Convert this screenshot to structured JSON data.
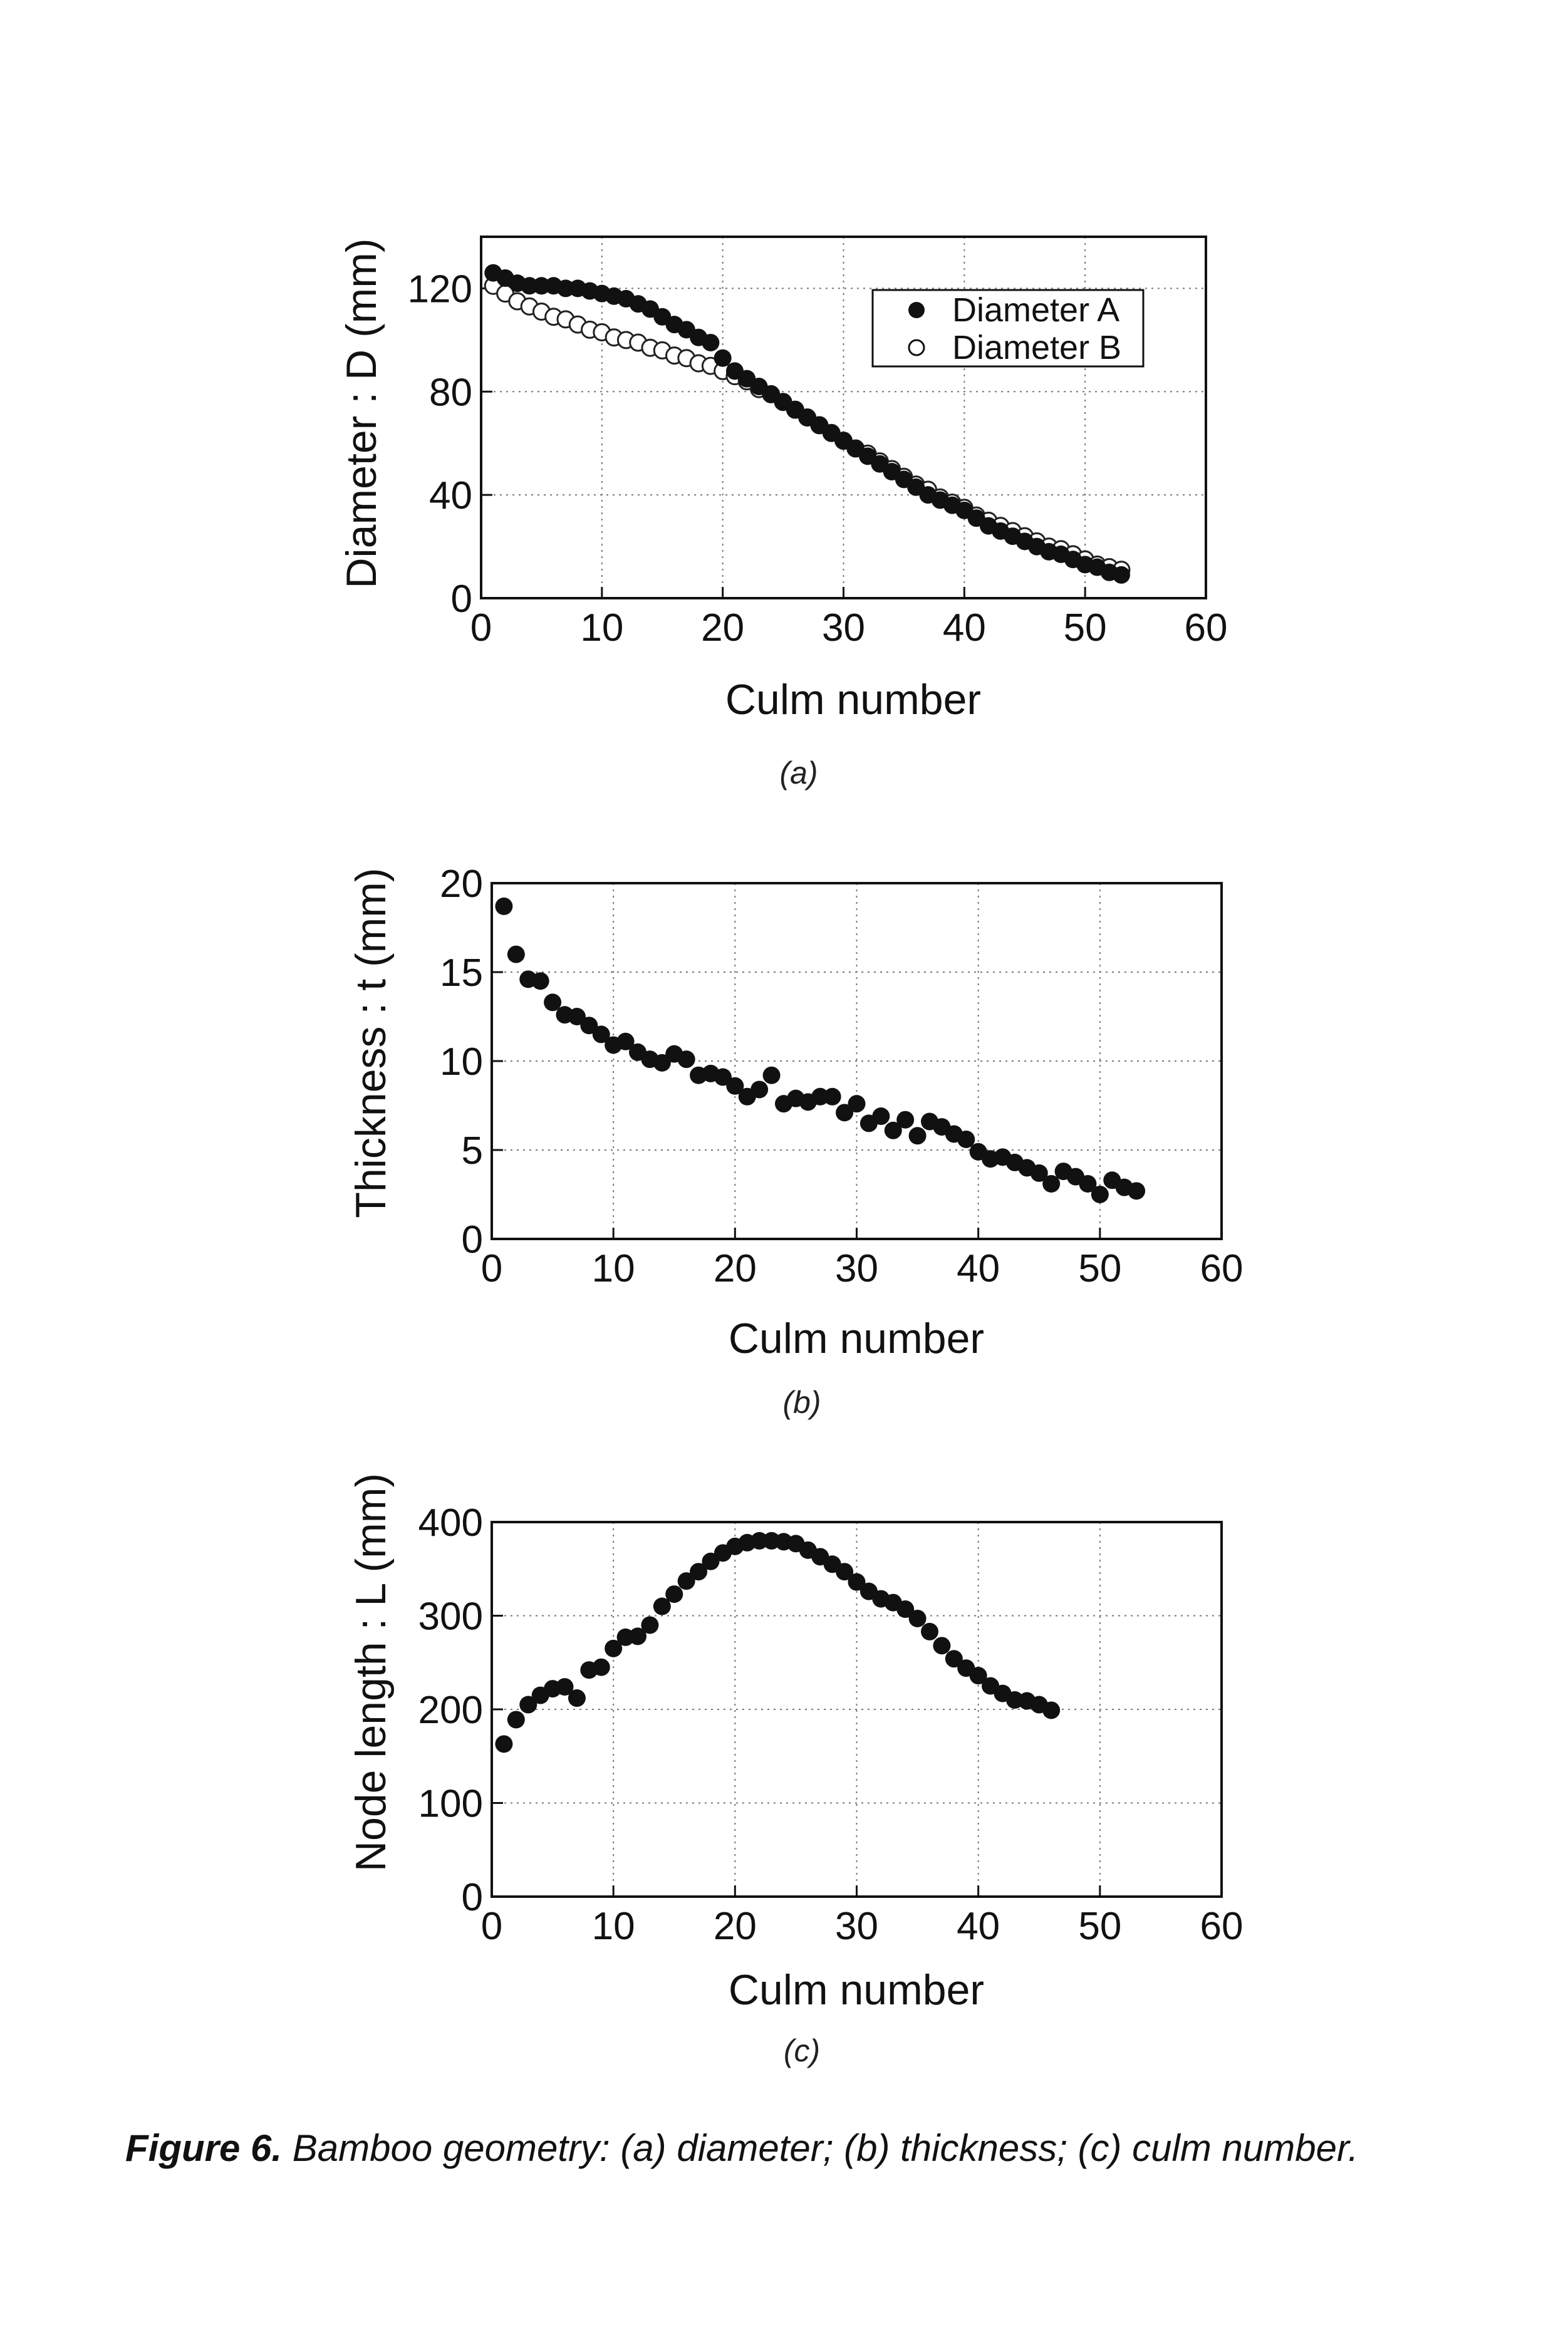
{
  "figure": {
    "caption_label": "Figure 6.",
    "caption_text": "Bamboo geometry: (a) diameter; (b) thickness; (c) culm number."
  },
  "chart_data": [
    {
      "id": "a",
      "panel_label": "(a)",
      "type": "scatter",
      "xlabel": "Culm number",
      "ylabel": "Diameter : D (mm)",
      "xlim": [
        0,
        60
      ],
      "ylim": [
        0,
        140
      ],
      "xticks": [
        0,
        10,
        20,
        30,
        40,
        50,
        60
      ],
      "yticks": [
        0,
        40,
        80,
        120
      ],
      "grid": true,
      "legend": "top-right",
      "series": [
        {
          "name": "Diameter A",
          "marker": "filled-circle",
          "x": [
            1,
            2,
            3,
            4,
            5,
            6,
            7,
            8,
            9,
            10,
            11,
            12,
            13,
            14,
            15,
            16,
            17,
            18,
            19,
            20,
            21,
            22,
            23,
            24,
            25,
            26,
            27,
            28,
            29,
            30,
            31,
            32,
            33,
            34,
            35,
            36,
            37,
            38,
            39,
            40,
            41,
            42,
            43,
            44,
            45,
            46,
            47,
            48,
            49,
            50,
            51,
            52,
            53
          ],
          "y": [
            126,
            124,
            122,
            121,
            121,
            121,
            120,
            120,
            119,
            118,
            117,
            116,
            114,
            112,
            109,
            106,
            104,
            101,
            99,
            93,
            88,
            85,
            82,
            79,
            76,
            73,
            70,
            67,
            64,
            61,
            58,
            55,
            52,
            49,
            46,
            43,
            40,
            38,
            36,
            34,
            31,
            28,
            26,
            24,
            22,
            20,
            18,
            17,
            15,
            13,
            12,
            10,
            9
          ]
        },
        {
          "name": "Diameter B",
          "marker": "open-circle",
          "x": [
            1,
            2,
            3,
            4,
            5,
            6,
            7,
            8,
            9,
            10,
            11,
            12,
            13,
            14,
            15,
            16,
            17,
            18,
            19,
            20,
            21,
            22,
            23,
            24,
            25,
            26,
            27,
            28,
            29,
            30,
            31,
            32,
            33,
            34,
            35,
            36,
            37,
            38,
            39,
            40,
            41,
            42,
            43,
            44,
            45,
            46,
            47,
            48,
            49,
            50,
            51,
            52,
            53
          ],
          "y": [
            121,
            118,
            115,
            113,
            111,
            109,
            108,
            106,
            104,
            103,
            101,
            100,
            99,
            97,
            96,
            94,
            93,
            91,
            90,
            88,
            86,
            84,
            81,
            79,
            76,
            73,
            70,
            67,
            64,
            61,
            58,
            56,
            53,
            50,
            47,
            44,
            42,
            39,
            37,
            35,
            32,
            30,
            28,
            26,
            24,
            22,
            20,
            19,
            17,
            15,
            13,
            12,
            11
          ]
        }
      ]
    },
    {
      "id": "b",
      "panel_label": "(b)",
      "type": "scatter",
      "xlabel": "Culm number",
      "ylabel": "Thickness : t (mm)",
      "xlim": [
        0,
        60
      ],
      "ylim": [
        0,
        20
      ],
      "xticks": [
        0,
        10,
        20,
        30,
        40,
        50,
        60
      ],
      "yticks": [
        0,
        5,
        10,
        15,
        20
      ],
      "grid": true,
      "series": [
        {
          "marker": "filled-circle",
          "x": [
            1,
            2,
            3,
            4,
            5,
            6,
            7,
            8,
            9,
            10,
            11,
            12,
            13,
            14,
            15,
            16,
            17,
            18,
            19,
            20,
            21,
            22,
            23,
            24,
            25,
            26,
            27,
            28,
            29,
            30,
            31,
            32,
            33,
            34,
            35,
            36,
            37,
            38,
            39,
            40,
            41,
            42,
            43,
            44,
            45,
            46,
            47,
            48,
            49,
            50,
            51,
            52,
            53
          ],
          "y": [
            18.7,
            16.0,
            14.6,
            14.5,
            13.3,
            12.6,
            12.5,
            12.0,
            11.5,
            10.9,
            11.1,
            10.5,
            10.1,
            9.9,
            10.4,
            10.1,
            9.2,
            9.3,
            9.1,
            8.6,
            8.0,
            8.4,
            9.2,
            7.6,
            7.9,
            7.7,
            8.0,
            8.0,
            7.1,
            7.6,
            6.5,
            6.9,
            6.1,
            6.7,
            5.8,
            6.6,
            6.3,
            5.9,
            5.6,
            4.9,
            4.5,
            4.6,
            4.3,
            4.0,
            3.7,
            3.1,
            3.8,
            3.5,
            3.1,
            2.5,
            3.3,
            2.9,
            2.7
          ]
        }
      ]
    },
    {
      "id": "c",
      "panel_label": "(c)",
      "type": "scatter",
      "xlabel": "Culm number",
      "ylabel": "Node length : L (mm)",
      "xlim": [
        0,
        60
      ],
      "ylim": [
        0,
        400
      ],
      "xticks": [
        0,
        10,
        20,
        30,
        40,
        50,
        60
      ],
      "yticks": [
        0,
        100,
        200,
        300,
        400
      ],
      "grid": true,
      "series": [
        {
          "marker": "filled-circle",
          "x": [
            1,
            2,
            3,
            4,
            5,
            6,
            7,
            8,
            9,
            10,
            11,
            12,
            13,
            14,
            15,
            16,
            17,
            18,
            19,
            20,
            21,
            22,
            23,
            24,
            25,
            26,
            27,
            28,
            29,
            30,
            31,
            32,
            33,
            34,
            35,
            36,
            37,
            38,
            39,
            40,
            41,
            42,
            43,
            44,
            45,
            46
          ],
          "y": [
            163,
            189,
            205,
            215,
            222,
            224,
            212,
            242,
            245,
            265,
            277,
            278,
            290,
            310,
            323,
            337,
            347,
            358,
            367,
            374,
            378,
            380,
            380,
            379,
            377,
            370,
            363,
            355,
            347,
            336,
            326,
            318,
            314,
            307,
            297,
            283,
            268,
            254,
            244,
            236,
            225,
            217,
            210,
            209,
            205,
            199
          ]
        }
      ]
    }
  ]
}
